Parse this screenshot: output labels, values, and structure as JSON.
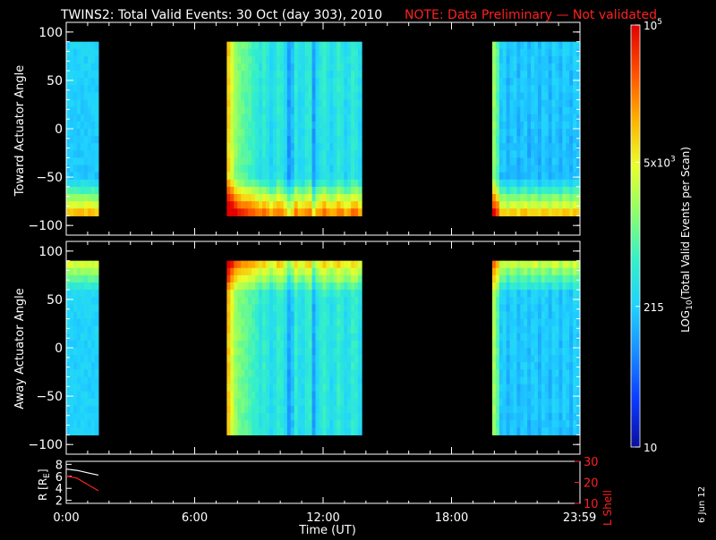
{
  "header": {
    "title": "TWINS2: Total Valid Events: 30 Oct (day 303), 2010",
    "note": "NOTE: Data Preliminary — Not validated"
  },
  "colors": {
    "background": "#000000",
    "axes": "#ffffff",
    "note": "#ff2020",
    "lshell": "#ff2020",
    "radius": "#ffffff"
  },
  "chart_data": [
    {
      "type": "heatmap",
      "name": "toward-panel",
      "ylabel": "Toward Actuator Angle",
      "ylim": [
        -110,
        110
      ],
      "yticks": [
        100,
        50,
        0,
        -50,
        -100
      ],
      "xlim_hours": [
        0,
        24
      ],
      "angle_range": [
        -90,
        90
      ],
      "data_blocks_hours": [
        [
          0.0,
          1.5
        ],
        [
          7.5,
          13.8
        ],
        [
          19.9,
          24.0
        ]
      ],
      "low_angle_enhancement": true
    },
    {
      "type": "heatmap",
      "name": "away-panel",
      "ylabel": "Away Actuator Angle",
      "ylim": [
        -110,
        110
      ],
      "yticks": [
        100,
        50,
        0,
        -50,
        -100
      ],
      "xlim_hours": [
        0,
        24
      ],
      "angle_range": [
        -90,
        90
      ],
      "data_blocks_hours": [
        [
          0.0,
          1.5
        ],
        [
          7.5,
          13.8
        ],
        [
          19.9,
          24.0
        ]
      ],
      "high_angle_enhancement": true
    },
    {
      "type": "line",
      "name": "orbit-panel",
      "ylabel_left": "R [R",
      "ylabel_left_sub": "E",
      "ylabel_left_close": "]",
      "ylabel_right": "L Shell",
      "yticks_left": [
        8,
        6,
        4,
        2
      ],
      "ylim_left": [
        1.5,
        8.5
      ],
      "yticks_right": [
        30,
        20,
        10
      ],
      "ylim_right": [
        10,
        30
      ],
      "series": [
        {
          "name": "R",
          "axis": "left",
          "x": [
            0.0,
            0.5,
            1.0,
            1.5
          ],
          "y": [
            7.2,
            7.0,
            6.6,
            6.2
          ]
        },
        {
          "name": "L Shell",
          "axis": "right",
          "x": [
            0.0,
            0.5,
            1.0,
            1.5
          ],
          "y": [
            23,
            22,
            19,
            16
          ]
        }
      ],
      "xticks": [
        "0:00",
        "6:00",
        "12:00",
        "18:00",
        "23:59"
      ],
      "xtick_hours": [
        0,
        6,
        12,
        18,
        23.983
      ],
      "xlabel": "Time (UT)"
    }
  ],
  "colorbar": {
    "label_main": "LOG",
    "label_sub": "10",
    "label_rest": "(Total Valid Events per Scan)",
    "ticks": [
      {
        "value": 100000,
        "base": "10",
        "sup": "5"
      },
      {
        "value": 5000,
        "base": "5x10",
        "sup": "3"
      },
      {
        "value": 215,
        "base": "215",
        "sup": ""
      },
      {
        "value": 10,
        "base": "10",
        "sup": ""
      }
    ],
    "range": [
      10,
      100000
    ],
    "stops": [
      "#0a0f9a",
      "#0a3aff",
      "#1a8bff",
      "#1fd2ff",
      "#35f0c8",
      "#8cff6a",
      "#e9ff2a",
      "#ffb000",
      "#ff4e00",
      "#e00000"
    ]
  },
  "footer": {
    "date_stamp": "6 Jun 12"
  }
}
